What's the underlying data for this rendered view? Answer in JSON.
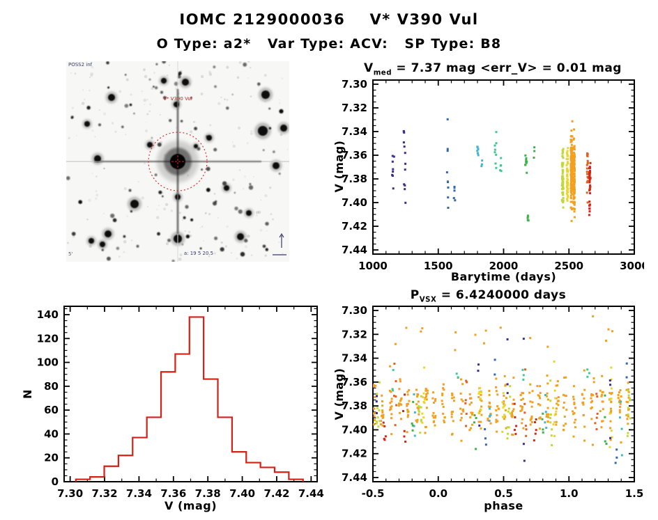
{
  "header": {
    "title": "IOMC 2129000036    V* V390 Vul",
    "subtitle": "O Type: a2*   Var Type: ACV:   SP Type: B8"
  },
  "finder": {
    "survey_label": "POSS2 inf",
    "target_label": "V* V390 Vul",
    "coords_label": "a: 19 5 20.5",
    "scale_label": "5'",
    "target_color": "#cc2222",
    "annot_color": "#333a66",
    "circle_color": "#dd2222",
    "seed": 13,
    "n_stars": 85,
    "n_noise": 170,
    "major_stars": [
      [
        171,
        30,
        5
      ],
      [
        286,
        48,
        6
      ],
      [
        282,
        100,
        7
      ],
      [
        65,
        52,
        5
      ],
      [
        158,
        62,
        4
      ],
      [
        45,
        140,
        5
      ],
      [
        98,
        205,
        6
      ],
      [
        160,
        255,
        6
      ],
      [
        250,
        252,
        5
      ],
      [
        205,
        110,
        4
      ],
      [
        120,
        120,
        4
      ],
      [
        60,
        248,
        5
      ],
      [
        301,
        150,
        5
      ],
      [
        230,
        182,
        4
      ],
      [
        30,
        90,
        4
      ],
      [
        36,
        258,
        4
      ],
      [
        52,
        263,
        4
      ],
      [
        262,
        218,
        4
      ],
      [
        140,
        28,
        4
      ],
      [
        312,
        96,
        5
      ],
      [
        160,
        195,
        4
      ],
      [
        186,
        122,
        3
      ]
    ]
  },
  "chart_data": [
    {
      "id": "lightcurve",
      "type": "scatter",
      "title_pre": "V",
      "title_sub": "med",
      "title_post": " = 7.37 mag <err_V> = 0.01 mag",
      "xlabel": "Barytime (days)",
      "ylabel": "V (mag)",
      "xlim": [
        1000,
        3000
      ],
      "ylim_top": 7.2965,
      "ylim_bottom": 7.4435,
      "xticks": {
        "major": [
          1000,
          1500,
          2000,
          2500,
          3000
        ],
        "labels": [
          "1000",
          "1500",
          "2000",
          "2500",
          "3000"
        ],
        "minor_step": 100
      },
      "yticks": {
        "major": [
          7.3,
          7.32,
          7.34,
          7.36,
          7.38,
          7.4,
          7.42,
          7.44
        ],
        "labels": [
          "7.30",
          "7.32",
          "7.34",
          "7.36",
          "7.38",
          "7.40",
          "7.42",
          "7.44"
        ],
        "minor_step": 0.005
      },
      "legend": "rainbow color encodes observation epoch (early=blue/violet, late=red)",
      "seed": 7,
      "point_size": 3,
      "clusters": [
        {
          "x": 1155,
          "xs": 8,
          "y": 7.372,
          "ys": 0.018,
          "n": 8,
          "c": "#3b2e8c"
        },
        {
          "x": 1240,
          "xs": 10,
          "y": 7.362,
          "ys": 0.028,
          "n": 12,
          "c": "#3b2e8c"
        },
        {
          "x": 1572,
          "xs": 6,
          "y": 7.372,
          "ys": 0.026,
          "n": 9,
          "c": "#3566ae"
        },
        {
          "x": 1625,
          "xs": 6,
          "y": 7.388,
          "ys": 0.012,
          "n": 5,
          "c": "#3566ae"
        },
        {
          "x": 1802,
          "xs": 8,
          "y": 7.353,
          "ys": 0.007,
          "n": 8,
          "c": "#3fb8cf"
        },
        {
          "x": 1833,
          "xs": 4,
          "y": 7.366,
          "ys": 0.008,
          "n": 3,
          "c": "#3fb8cf"
        },
        {
          "x": 1938,
          "xs": 6,
          "y": 7.355,
          "ys": 0.022,
          "n": 8,
          "c": "#41c795"
        },
        {
          "x": 1978,
          "xs": 5,
          "y": 7.372,
          "ys": 0.015,
          "n": 5,
          "c": "#41c795"
        },
        {
          "x": 2172,
          "xs": 7,
          "y": 7.366,
          "ys": 0.009,
          "n": 9,
          "c": "#3fb04c"
        },
        {
          "x": 2186,
          "xs": 5,
          "y": 7.413,
          "ys": 0.009,
          "n": 5,
          "c": "#3fb04c"
        },
        {
          "x": 2232,
          "xs": 4,
          "y": 7.359,
          "ys": 0.005,
          "n": 3,
          "c": "#3fb04c"
        },
        {
          "x": 2452,
          "xs": 6,
          "y": 7.378,
          "ys": 0.021,
          "n": 60,
          "c": "#c3d838"
        },
        {
          "x": 2488,
          "xs": 5,
          "y": 7.377,
          "ys": 0.02,
          "n": 48,
          "c": "#e8d52e"
        },
        {
          "x": 2520,
          "xs": 6,
          "y": 7.373,
          "ys": 0.027,
          "n": 140,
          "c": "#f2a01f"
        },
        {
          "x": 2539,
          "xs": 5,
          "y": 7.378,
          "ys": 0.025,
          "n": 110,
          "c": "#f2a01f"
        },
        {
          "x": 2642,
          "xs": 4,
          "y": 7.377,
          "ys": 0.018,
          "n": 20,
          "c": "#e55e22"
        },
        {
          "x": 2660,
          "xs": 5,
          "y": 7.387,
          "ys": 0.02,
          "n": 34,
          "c": "#cd2a18"
        }
      ]
    },
    {
      "id": "histogram",
      "type": "histogram",
      "xlabel": "V (mag)",
      "ylabel": "N",
      "xlim": [
        7.2965,
        7.4435
      ],
      "ylim": [
        0,
        147
      ],
      "xticks": {
        "major": [
          7.3,
          7.32,
          7.34,
          7.36,
          7.38,
          7.4,
          7.42,
          7.44
        ],
        "labels": [
          "7.30",
          "7.32",
          "7.34",
          "7.36",
          "7.38",
          "7.40",
          "7.42",
          "7.44"
        ],
        "minor_step": 0.01
      },
      "yticks": {
        "major": [
          0,
          20,
          40,
          60,
          80,
          100,
          120,
          140
        ],
        "labels": [
          "0",
          "20",
          "40",
          "60",
          "80",
          "100",
          "120",
          "140"
        ],
        "minor_step": 5
      },
      "bin_start": 7.3033,
      "bin_width": 0.00825,
      "values": [
        2,
        4,
        13,
        22,
        37,
        54,
        92,
        107,
        138,
        86,
        54,
        25,
        16,
        12,
        8,
        2
      ],
      "color": "#d42015"
    },
    {
      "id": "phase",
      "type": "scatter",
      "title_pre": "P",
      "title_sub": "VSX",
      "title_post": " = 6.4240000 days",
      "xlabel": "phase",
      "ylabel": "V (mag)",
      "xlim": [
        -0.5,
        1.5
      ],
      "ylim_top": 7.2965,
      "ylim_bottom": 7.4435,
      "xticks": {
        "major": [
          -0.5,
          0.0,
          0.5,
          1.0,
          1.5
        ],
        "labels": [
          "-0.5",
          "0.0",
          "0.5",
          "1.0",
          "1.5"
        ],
        "minor_step": 0.1
      },
      "yticks": {
        "major": [
          7.3,
          7.32,
          7.34,
          7.36,
          7.38,
          7.4,
          7.42,
          7.44
        ],
        "labels": [
          "7.30",
          "7.32",
          "7.34",
          "7.36",
          "7.38",
          "7.40",
          "7.42",
          "7.44"
        ],
        "minor_step": 0.005
      },
      "seed": 21,
      "point_size": 3,
      "clusters": [
        {
          "x": 0.5,
          "xs": 1.0,
          "y": 7.321,
          "ys": 0.01,
          "n": 16,
          "c": "#f2a01f"
        }
      ],
      "column_sets": [
        {
          "phases": [
            -0.49,
            -0.43,
            -0.36,
            -0.29,
            -0.23,
            -0.16,
            -0.09,
            -0.03,
            0.04,
            0.11,
            0.18,
            0.25,
            0.32,
            0.39,
            0.45,
            0.51,
            0.57,
            0.64,
            0.71,
            0.77,
            0.84,
            0.91,
            0.97,
            1.04,
            1.11,
            1.18,
            1.25,
            1.32,
            1.39,
            1.45
          ],
          "xs": 0.012,
          "y": 7.38,
          "ys": 0.021,
          "n": 13,
          "c": "#f2a01f"
        },
        {
          "phases": [
            -0.46,
            -0.14,
            0.54,
            0.86,
            1.46
          ],
          "xs": 0.012,
          "y": 7.384,
          "ys": 0.024,
          "n": 9,
          "c": "#c3d838"
        },
        {
          "phases": [
            -0.11,
            0.32,
            0.5,
            0.89,
            1.32
          ],
          "xs": 0.012,
          "y": 7.379,
          "ys": 0.023,
          "n": 9,
          "c": "#e8d52e"
        },
        {
          "phases": [
            -0.33,
            0.21,
            0.67,
            1.21
          ],
          "xs": 0.01,
          "y": 7.385,
          "ys": 0.024,
          "n": 6,
          "c": "#e55e22"
        },
        {
          "phases": [
            -0.41,
            -0.26,
            0.59,
            0.74
          ],
          "xs": 0.01,
          "y": 7.392,
          "ys": 0.02,
          "n": 5,
          "c": "#cd2a18"
        },
        {
          "phases": [
            -0.47,
            0.31,
            0.53,
            0.66,
            1.31
          ],
          "xs": 0.008,
          "y": 7.372,
          "ys": 0.045,
          "n": 3,
          "c": "#3b2e8c"
        },
        {
          "phases": [
            0.36,
            1.36
          ],
          "xs": 0.008,
          "y": 7.408,
          "ys": 0.018,
          "n": 3,
          "c": "#3566ae"
        },
        {
          "phases": [
            0.44,
            1.44
          ],
          "xs": 0.008,
          "y": 7.348,
          "ys": 0.012,
          "n": 2,
          "c": "#3566ae"
        },
        {
          "phases": [
            -0.18,
            0.4,
            0.82,
            1.4
          ],
          "xs": 0.01,
          "y": 7.39,
          "ys": 0.02,
          "n": 4,
          "c": "#3fb8cf"
        },
        {
          "phases": [
            -0.35,
            0.15,
            0.65,
            1.15
          ],
          "xs": 0.01,
          "y": 7.358,
          "ys": 0.018,
          "n": 3,
          "c": "#41c795"
        },
        {
          "phases": [
            -0.2,
            0.28,
            0.8,
            1.28
          ],
          "xs": 0.01,
          "y": 7.398,
          "ys": 0.02,
          "n": 4,
          "c": "#3fb04c"
        }
      ]
    }
  ]
}
